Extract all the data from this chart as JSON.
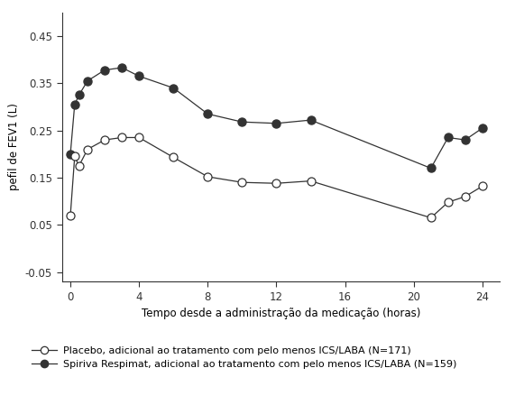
{
  "placebo_x": [
    0,
    0.25,
    0.5,
    1,
    2,
    3,
    4,
    6,
    8,
    10,
    12,
    14,
    21,
    22,
    23,
    24
  ],
  "placebo_y": [
    0.07,
    0.195,
    0.175,
    0.21,
    0.23,
    0.235,
    0.235,
    0.193,
    0.152,
    0.14,
    0.138,
    0.143,
    0.065,
    0.098,
    0.11,
    0.132
  ],
  "spiriva_x": [
    0,
    0.25,
    0.5,
    1,
    2,
    3,
    4,
    6,
    8,
    10,
    12,
    14,
    21,
    22,
    23,
    24
  ],
  "spiriva_y": [
    0.2,
    0.305,
    0.325,
    0.355,
    0.378,
    0.383,
    0.365,
    0.34,
    0.285,
    0.268,
    0.265,
    0.272,
    0.17,
    0.235,
    0.23,
    0.255
  ],
  "xlabel": "Tempo desde a administração da medicação (horas)",
  "ylabel": "pefil de FEV1 (L)",
  "ylim": [
    -0.07,
    0.5
  ],
  "xlim": [
    -0.5,
    25
  ],
  "xticks": [
    0,
    4,
    8,
    12,
    16,
    20,
    24
  ],
  "yticks": [
    -0.05,
    0.05,
    0.15,
    0.25,
    0.35,
    0.45
  ],
  "ytick_labels": [
    "-0.05",
    "0.05",
    "0.15",
    "0.25",
    "0.35",
    "0.45"
  ],
  "legend_placebo": "Placebo, adicional ao tratamento com pelo menos ICS/LABA (N=171)",
  "legend_spiriva": "Spiriva Respimat, adicional ao tratamento com pelo menos ICS/LABA (N=159)",
  "line_color": "#333333",
  "bg_color": "#ffffff",
  "fontsize": 8.5,
  "legend_fontsize": 8.0
}
